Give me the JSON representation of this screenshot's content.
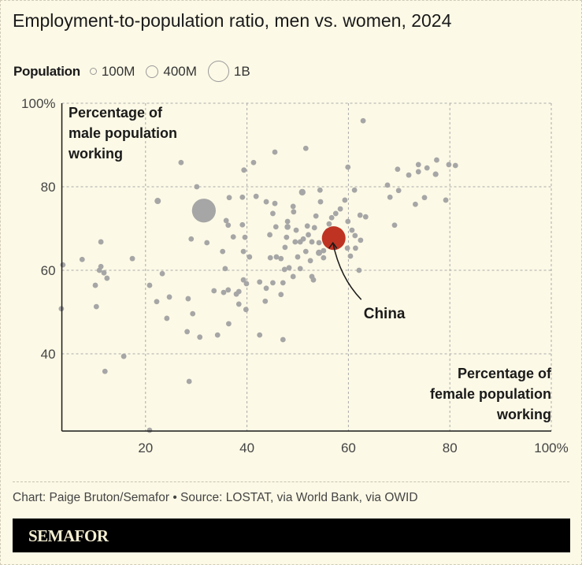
{
  "title": "Employment-to-population ratio, men vs. women, 2024",
  "legend": {
    "label": "Population",
    "items": [
      {
        "label": "100M",
        "population_millions": 100
      },
      {
        "label": "400M",
        "population_millions": 400
      },
      {
        "label": "1B",
        "population_millions": 1000
      }
    ]
  },
  "credit": "Chart: Paige Bruton/Semafor • Source: LOSTAT, via World Bank, via OWID",
  "brand": "SEMAFOR",
  "colors": {
    "background": "#fcf9e6",
    "dot": "#a6a6a6",
    "highlight": "#bf3323",
    "text": "#1a1a1a"
  },
  "chart_data": {
    "type": "scatter",
    "title": "Employment-to-population ratio, men vs. women, 2024",
    "xlabel": "Percentage of female population working",
    "ylabel": "Percentage of male population working",
    "xlim": [
      3.5,
      100
    ],
    "ylim": [
      21.5,
      100
    ],
    "xticks": [
      20,
      40,
      60,
      80,
      100
    ],
    "xtick_labels": [
      "20",
      "40",
      "60",
      "80",
      "100%"
    ],
    "yticks": [
      40,
      60,
      80,
      100
    ],
    "ytick_labels": [
      "40",
      "60",
      "80",
      "100%"
    ],
    "grid": true,
    "size_encoding": "population",
    "annotation": {
      "label": "China",
      "x": 57.1,
      "y": 67.7
    },
    "points": [
      {
        "x": 31.5,
        "y": 74.3,
        "pop": 1430
      },
      {
        "x": 3.7,
        "y": 61.3,
        "pop": 30
      },
      {
        "x": 3.4,
        "y": 50.8,
        "pop": 30
      },
      {
        "x": 7.5,
        "y": 62.6,
        "pop": 30
      },
      {
        "x": 11.2,
        "y": 66.8,
        "pop": 60
      },
      {
        "x": 11.2,
        "y": 60.9,
        "pop": 45
      },
      {
        "x": 10.9,
        "y": 60,
        "pop": 30
      },
      {
        "x": 10.1,
        "y": 56.4,
        "pop": 30
      },
      {
        "x": 10.3,
        "y": 51.3,
        "pop": 20
      },
      {
        "x": 12.4,
        "y": 58.1,
        "pop": 30
      },
      {
        "x": 11.8,
        "y": 59.4,
        "pop": 20
      },
      {
        "x": 17.4,
        "y": 62.8,
        "pop": 30
      },
      {
        "x": 15.7,
        "y": 39.4,
        "pop": 20
      },
      {
        "x": 12,
        "y": 35.8,
        "pop": 20
      },
      {
        "x": 20.8,
        "y": 21.7,
        "pop": 20
      },
      {
        "x": 22.4,
        "y": 76.6,
        "pop": 100
      },
      {
        "x": 20.8,
        "y": 56.4,
        "pop": 20
      },
      {
        "x": 22.2,
        "y": 52.5,
        "pop": 20
      },
      {
        "x": 23.3,
        "y": 59.2,
        "pop": 20
      },
      {
        "x": 24.7,
        "y": 53.6,
        "pop": 20
      },
      {
        "x": 24.2,
        "y": 48.5,
        "pop": 30
      },
      {
        "x": 27,
        "y": 85.8,
        "pop": 20
      },
      {
        "x": 28.4,
        "y": 53.2,
        "pop": 20
      },
      {
        "x": 29.3,
        "y": 49.6,
        "pop": 20
      },
      {
        "x": 28.2,
        "y": 45.3,
        "pop": 20
      },
      {
        "x": 28.6,
        "y": 33.4,
        "pop": 20
      },
      {
        "x": 30.1,
        "y": 80,
        "pop": 30
      },
      {
        "x": 29,
        "y": 67.5,
        "pop": 20
      },
      {
        "x": 32.1,
        "y": 66.6,
        "pop": 60
      },
      {
        "x": 30.7,
        "y": 44,
        "pop": 20
      },
      {
        "x": 34.2,
        "y": 44.5,
        "pop": 40
      },
      {
        "x": 33.5,
        "y": 55.1,
        "pop": 20
      },
      {
        "x": 35.4,
        "y": 54.7,
        "pop": 20
      },
      {
        "x": 36.3,
        "y": 55.3,
        "pop": 20
      },
      {
        "x": 36.5,
        "y": 77.4,
        "pop": 20
      },
      {
        "x": 35.9,
        "y": 71.9,
        "pop": 20
      },
      {
        "x": 36.3,
        "y": 70.8,
        "pop": 30
      },
      {
        "x": 37.3,
        "y": 68,
        "pop": 30
      },
      {
        "x": 35.2,
        "y": 64.5,
        "pop": 30
      },
      {
        "x": 35.7,
        "y": 60.4,
        "pop": 30
      },
      {
        "x": 37.9,
        "y": 54.3,
        "pop": 40
      },
      {
        "x": 38.4,
        "y": 54.9,
        "pop": 30
      },
      {
        "x": 36.4,
        "y": 47.2,
        "pop": 20
      },
      {
        "x": 38.4,
        "y": 51.9,
        "pop": 20
      },
      {
        "x": 39.1,
        "y": 77.5,
        "pop": 20
      },
      {
        "x": 39.1,
        "y": 70.9,
        "pop": 30
      },
      {
        "x": 39.6,
        "y": 67.9,
        "pop": 30
      },
      {
        "x": 39.3,
        "y": 64.5,
        "pop": 30
      },
      {
        "x": 40.5,
        "y": 63.2,
        "pop": 20
      },
      {
        "x": 39.3,
        "y": 57.7,
        "pop": 30
      },
      {
        "x": 39.9,
        "y": 56.8,
        "pop": 30
      },
      {
        "x": 39.8,
        "y": 50.6,
        "pop": 30
      },
      {
        "x": 41.3,
        "y": 85.8,
        "pop": 20
      },
      {
        "x": 39.4,
        "y": 84,
        "pop": 20
      },
      {
        "x": 41.8,
        "y": 77.7,
        "pop": 70
      },
      {
        "x": 42.5,
        "y": 44.5,
        "pop": 20
      },
      {
        "x": 42.5,
        "y": 57.2,
        "pop": 30
      },
      {
        "x": 43.8,
        "y": 55.7,
        "pop": 20
      },
      {
        "x": 43.6,
        "y": 52.6,
        "pop": 20
      },
      {
        "x": 45.1,
        "y": 57,
        "pop": 30
      },
      {
        "x": 45.5,
        "y": 88.3,
        "pop": 20
      },
      {
        "x": 43.8,
        "y": 76.4,
        "pop": 20
      },
      {
        "x": 45.1,
        "y": 73.6,
        "pop": 30
      },
      {
        "x": 45.5,
        "y": 76,
        "pop": 60
      },
      {
        "x": 45.7,
        "y": 70.4,
        "pop": 30
      },
      {
        "x": 44.5,
        "y": 68.5,
        "pop": 20
      },
      {
        "x": 44.6,
        "y": 63,
        "pop": 20
      },
      {
        "x": 45.8,
        "y": 63.2,
        "pop": 20
      },
      {
        "x": 46.7,
        "y": 54.2,
        "pop": 20
      },
      {
        "x": 47.1,
        "y": 43.4,
        "pop": 20
      },
      {
        "x": 47.4,
        "y": 60.2,
        "pop": 20
      },
      {
        "x": 48.3,
        "y": 60.6,
        "pop": 20
      },
      {
        "x": 47.8,
        "y": 67.9,
        "pop": 70
      },
      {
        "x": 48,
        "y": 71.7,
        "pop": 40
      },
      {
        "x": 48,
        "y": 70.4,
        "pop": 90
      },
      {
        "x": 49.1,
        "y": 75.3,
        "pop": 30
      },
      {
        "x": 49.2,
        "y": 74,
        "pop": 30
      },
      {
        "x": 50,
        "y": 63.2,
        "pop": 30
      },
      {
        "x": 49.5,
        "y": 66.8,
        "pop": 30
      },
      {
        "x": 50.9,
        "y": 78.7,
        "pop": 110
      },
      {
        "x": 51.6,
        "y": 89.2,
        "pop": 20
      },
      {
        "x": 47.1,
        "y": 57,
        "pop": 20
      },
      {
        "x": 46.7,
        "y": 62.8,
        "pop": 20
      },
      {
        "x": 47.5,
        "y": 65.5,
        "pop": 20
      },
      {
        "x": 49.1,
        "y": 58.5,
        "pop": 20
      },
      {
        "x": 50.5,
        "y": 60.4,
        "pop": 30
      },
      {
        "x": 51.6,
        "y": 64.5,
        "pop": 40
      },
      {
        "x": 52.5,
        "y": 62.3,
        "pop": 60
      },
      {
        "x": 52.8,
        "y": 58.5,
        "pop": 20
      },
      {
        "x": 54.4,
        "y": 79.2,
        "pop": 20
      },
      {
        "x": 54.5,
        "y": 76.4,
        "pop": 60
      },
      {
        "x": 55.1,
        "y": 64.7,
        "pop": 40
      },
      {
        "x": 54.2,
        "y": 64.2,
        "pop": 100
      },
      {
        "x": 55.1,
        "y": 63,
        "pop": 70
      },
      {
        "x": 54.2,
        "y": 66.6,
        "pop": 40
      },
      {
        "x": 56.2,
        "y": 71.1,
        "pop": 30
      },
      {
        "x": 58.4,
        "y": 74.7,
        "pop": 40
      },
      {
        "x": 59.3,
        "y": 76.8,
        "pop": 30
      },
      {
        "x": 59.9,
        "y": 71.7,
        "pop": 30
      },
      {
        "x": 60.7,
        "y": 69.6,
        "pop": 20
      },
      {
        "x": 61.3,
        "y": 68.3,
        "pop": 40
      },
      {
        "x": 62.4,
        "y": 67.2,
        "pop": 20
      },
      {
        "x": 61.4,
        "y": 65.3,
        "pop": 20
      },
      {
        "x": 62.1,
        "y": 60,
        "pop": 30
      },
      {
        "x": 59.8,
        "y": 65.3,
        "pop": 60
      },
      {
        "x": 60.4,
        "y": 63.4,
        "pop": 30
      },
      {
        "x": 59.9,
        "y": 84.7,
        "pop": 30
      },
      {
        "x": 61.2,
        "y": 79.2,
        "pop": 20
      },
      {
        "x": 62.3,
        "y": 73.2,
        "pop": 30
      },
      {
        "x": 63.4,
        "y": 72.8,
        "pop": 30
      },
      {
        "x": 62.9,
        "y": 95.8,
        "pop": 20
      },
      {
        "x": 67.7,
        "y": 80.4,
        "pop": 20
      },
      {
        "x": 68.2,
        "y": 77.5,
        "pop": 60
      },
      {
        "x": 69.9,
        "y": 79.1,
        "pop": 20
      },
      {
        "x": 69.7,
        "y": 84.2,
        "pop": 20
      },
      {
        "x": 69.1,
        "y": 70.8,
        "pop": 20
      },
      {
        "x": 71.9,
        "y": 82.8,
        "pop": 30
      },
      {
        "x": 73.8,
        "y": 85.3,
        "pop": 30
      },
      {
        "x": 73.2,
        "y": 75.8,
        "pop": 20
      },
      {
        "x": 75,
        "y": 77.4,
        "pop": 30
      },
      {
        "x": 77.4,
        "y": 86.4,
        "pop": 40
      },
      {
        "x": 77.2,
        "y": 83,
        "pop": 80
      },
      {
        "x": 79.8,
        "y": 85.3,
        "pop": 30
      },
      {
        "x": 81.1,
        "y": 85.1,
        "pop": 20
      },
      {
        "x": 79.2,
        "y": 76.8,
        "pop": 20
      },
      {
        "x": 75.5,
        "y": 84.5,
        "pop": 30
      },
      {
        "x": 73.8,
        "y": 83.6,
        "pop": 20
      },
      {
        "x": 50.5,
        "y": 66.8,
        "pop": 20
      },
      {
        "x": 52.1,
        "y": 68.5,
        "pop": 20
      },
      {
        "x": 53.3,
        "y": 70.2,
        "pop": 30
      },
      {
        "x": 53.1,
        "y": 57.7,
        "pop": 20
      },
      {
        "x": 53.6,
        "y": 73,
        "pop": 30
      },
      {
        "x": 55.9,
        "y": 69.4,
        "pop": 20
      },
      {
        "x": 56.7,
        "y": 72.6,
        "pop": 20
      },
      {
        "x": 57.5,
        "y": 73.6,
        "pop": 20
      },
      {
        "x": 51.9,
        "y": 70.6,
        "pop": 30
      },
      {
        "x": 49.7,
        "y": 69.6,
        "pop": 20
      },
      {
        "x": 51.1,
        "y": 67.5,
        "pop": 30
      },
      {
        "x": 52.8,
        "y": 66.8,
        "pop": 20
      },
      {
        "x": 57.1,
        "y": 67.7,
        "pop": 1410,
        "label": "China",
        "highlight": true
      }
    ]
  }
}
